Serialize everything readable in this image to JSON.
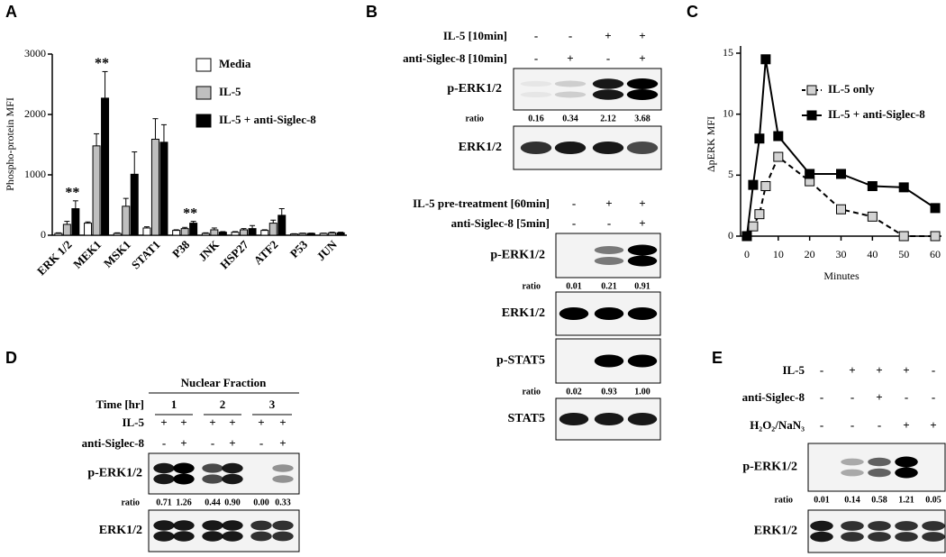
{
  "chart_data": [
    {
      "type": "bar",
      "panel": "A",
      "ylabel": "Phospho-protein MFI",
      "categories": [
        "ERK 1/2",
        "MEK1",
        "MSK1",
        "STAT1",
        "P38",
        "JNK",
        "HSP27",
        "ATF2",
        "P53",
        "JUN"
      ],
      "series": [
        {
          "name": "Media",
          "color": "#ffffff",
          "values": [
            30,
            200,
            30,
            120,
            80,
            30,
            50,
            80,
            20,
            30
          ],
          "errors": [
            10,
            20,
            10,
            20,
            10,
            10,
            10,
            10,
            5,
            5
          ]
        },
        {
          "name": "IL-5",
          "color": "#bfbfbf",
          "values": [
            180,
            1480,
            480,
            1590,
            110,
            90,
            90,
            200,
            30,
            40
          ],
          "errors": [
            50,
            200,
            130,
            340,
            20,
            30,
            20,
            50,
            5,
            10
          ]
        },
        {
          "name": "IL-5 + anti-Siglec-8",
          "color": "#000000",
          "values": [
            440,
            2270,
            1010,
            1540,
            200,
            50,
            110,
            330,
            30,
            40
          ],
          "errors": [
            130,
            440,
            370,
            290,
            30,
            10,
            50,
            110,
            5,
            10
          ]
        }
      ],
      "significance": [
        "**",
        "**",
        null,
        null,
        "**",
        null,
        null,
        null,
        null,
        null
      ],
      "ylim": [
        0,
        3000
      ],
      "yticks": [
        0,
        1000,
        2000,
        3000
      ],
      "legend": "upper right"
    },
    {
      "type": "line",
      "panel": "C",
      "xlabel": "Minutes",
      "ylabel": "ΔpERK MFI",
      "series": [
        {
          "name": "IL-5 only",
          "color": "#d3d3d3",
          "line_style": "dashed",
          "x": [
            0,
            2,
            4,
            6,
            10,
            20,
            30,
            40,
            50,
            60
          ],
          "values": [
            0,
            0.8,
            1.8,
            4.1,
            6.5,
            4.5,
            2.2,
            1.6,
            0,
            0
          ]
        },
        {
          "name": "IL-5 + anti-Siglec-8",
          "color": "#000000",
          "line_style": "solid",
          "x": [
            0,
            2,
            4,
            6,
            10,
            20,
            30,
            40,
            50,
            60
          ],
          "values": [
            0,
            4.2,
            8,
            14.5,
            8.2,
            5.1,
            5.1,
            4.1,
            4.0,
            2.3
          ]
        }
      ],
      "xlim": [
        -2,
        62
      ],
      "ylim": [
        0,
        15
      ],
      "xticks": [
        0,
        10,
        20,
        30,
        40,
        50,
        60
      ],
      "yticks": [
        0,
        5,
        10,
        15
      ],
      "legend": "upper right"
    }
  ],
  "panel_b": {
    "label": "B",
    "sections": [
      {
        "conditions": [
          {
            "name": "IL-5 [10min]",
            "signs": [
              "-",
              "-",
              "+",
              "+"
            ]
          },
          {
            "name": "anti-Siglec-8 [10min]",
            "signs": [
              "-",
              "+",
              "-",
              "+"
            ]
          }
        ],
        "blots": [
          {
            "name": "p-ERK1/2",
            "ratio_label": "ratio",
            "ratios": [
              "0.16",
              "0.34",
              "2.12",
              "3.68"
            ]
          },
          {
            "name": "ERK1/2"
          }
        ]
      },
      {
        "conditions": [
          {
            "name": "IL-5 pre-treatment [60min]",
            "signs": [
              "-",
              "+",
              "+"
            ]
          },
          {
            "name": "anti-Siglec-8 [5min]",
            "signs": [
              "-",
              "-",
              "+"
            ]
          }
        ],
        "blots": [
          {
            "name": "p-ERK1/2",
            "ratio_label": "ratio",
            "ratios": [
              "0.01",
              "0.21",
              "0.91"
            ]
          },
          {
            "name": "ERK1/2"
          },
          {
            "name": "p-STAT5",
            "ratio_label": "ratio",
            "ratios": [
              "0.02",
              "0.93",
              "1.00"
            ]
          },
          {
            "name": "STAT5"
          }
        ]
      }
    ]
  },
  "panel_d": {
    "label": "D",
    "header": "Nuclear Fraction",
    "time_label": "Time [hr]",
    "time_groups": [
      "1",
      "2",
      "3"
    ],
    "conditions": [
      {
        "name": "IL-5",
        "signs": [
          "+",
          "+",
          "+",
          "+",
          "+",
          "+"
        ]
      },
      {
        "name": "anti-Siglec-8",
        "signs": [
          "-",
          "+",
          "-",
          "+",
          "-",
          "+"
        ]
      }
    ],
    "blots": [
      {
        "name": "p-ERK1/2",
        "ratio_label": "ratio",
        "ratios": [
          "0.71",
          "1.26",
          "0.44",
          "0.90",
          "0.00",
          "0.33"
        ]
      },
      {
        "name": "ERK1/2"
      }
    ]
  },
  "panel_e": {
    "label": "E",
    "conditions": [
      {
        "name": "IL-5",
        "signs": [
          "-",
          "+",
          "+",
          "+",
          "-"
        ]
      },
      {
        "name": "anti-Siglec-8",
        "signs": [
          "-",
          "-",
          "+",
          "-",
          "-"
        ]
      },
      {
        "name": "H₂O₂/NaN₃",
        "signs": [
          "-",
          "-",
          "-",
          "+",
          "+"
        ]
      }
    ],
    "blots": [
      {
        "name": "p-ERK1/2",
        "ratio_label": "ratio",
        "ratios": [
          "0.01",
          "0.14",
          "0.58",
          "1.21",
          "0.05"
        ]
      },
      {
        "name": "ERK1/2"
      }
    ]
  }
}
